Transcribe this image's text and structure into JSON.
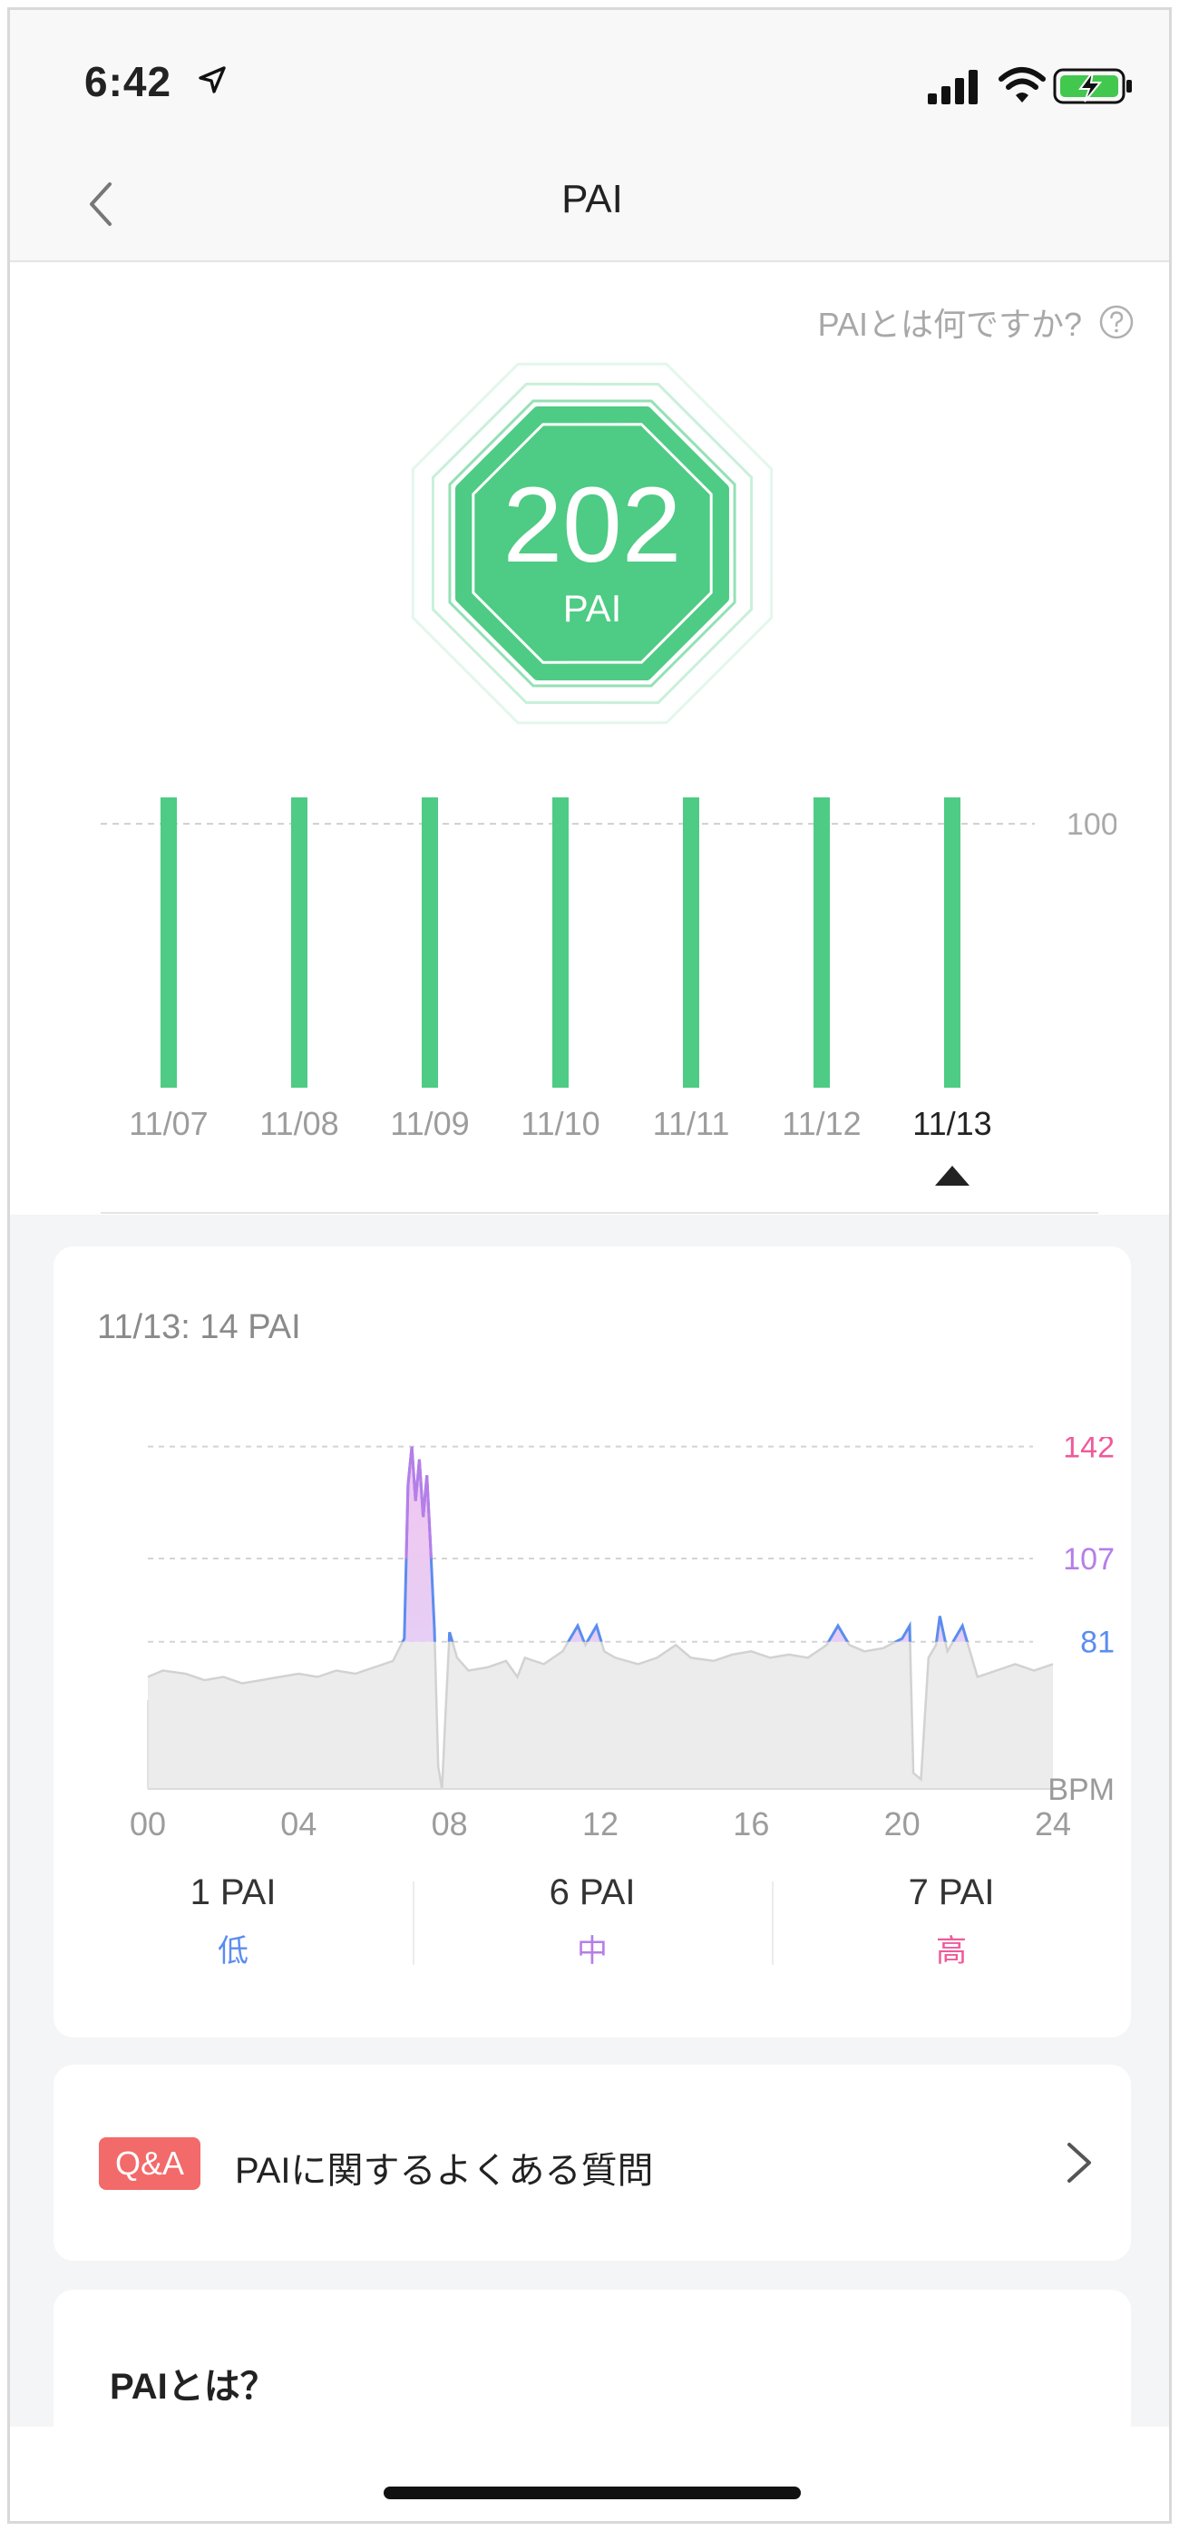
{
  "status_bar": {
    "time": "6:42"
  },
  "nav": {
    "title": "PAI"
  },
  "help": {
    "label": "PAIとは何ですか?"
  },
  "score": {
    "value": "202",
    "unit": "PAI"
  },
  "weekly_chart": {
    "reference_label": "100",
    "selected_index": 6
  },
  "detail": {
    "title": "11/13: 14 PAI"
  },
  "zones": [
    {
      "value": "1 PAI",
      "label": "低",
      "color": "#5b8def"
    },
    {
      "value": "6 PAI",
      "label": "中",
      "color": "#b67ee8"
    },
    {
      "value": "7 PAI",
      "label": "高",
      "color": "#ef5a9a"
    }
  ],
  "qa": {
    "badge": "Q&A",
    "label": "PAIに関するよくある質問"
  },
  "about": {
    "title": "PAIとは？"
  },
  "colors": {
    "green": "#4ecb84",
    "zone_low": "#5b8def",
    "zone_mid": "#b67ee8",
    "zone_high": "#ef5a9a",
    "qa_badge": "#f26a6a"
  },
  "chart_data": [
    {
      "type": "bar",
      "categories": [
        "11/07",
        "11/08",
        "11/09",
        "11/10",
        "11/11",
        "11/12",
        "11/13"
      ],
      "values": [
        110,
        110,
        110,
        110,
        110,
        110,
        110
      ],
      "reference_lines": [
        100
      ],
      "ylim": [
        0,
        110
      ],
      "grid": false
    },
    {
      "type": "area",
      "x_ticks": [
        "00",
        "04",
        "08",
        "12",
        "16",
        "20",
        "24"
      ],
      "y_ticks": [
        81,
        107,
        142
      ],
      "ylabel": "BPM",
      "ylim": [
        35,
        145
      ],
      "xlim": [
        0,
        24
      ],
      "series": [
        {
          "x": [
            0,
            0.4,
            1,
            1.5,
            2,
            2.5,
            3,
            3.5,
            4,
            4.5,
            5,
            5.5,
            6,
            6.5,
            6.8,
            6.9,
            7.0,
            7.1,
            7.2,
            7.3,
            7.4,
            7.5,
            7.6,
            7.7,
            7.8,
            7.9,
            8.0,
            8.2,
            8.5,
            9,
            9.5,
            9.8,
            10,
            10.5,
            11,
            11.4,
            11.6,
            11.9,
            12.1,
            12.4,
            13,
            13.5,
            14,
            14.4,
            15,
            15.5,
            16,
            16.5,
            17,
            17.5,
            18,
            18.3,
            18.6,
            19,
            19.5,
            20,
            20.2,
            20.3,
            20.5,
            20.7,
            20.9,
            21.0,
            21.2,
            21.4,
            21.6,
            21.8,
            22,
            22.5,
            23,
            23.5,
            24
          ],
          "y": [
            70,
            72,
            71,
            69,
            70,
            68,
            69,
            70,
            71,
            70,
            72,
            71,
            73,
            75,
            82,
            130,
            142,
            125,
            138,
            120,
            133,
            110,
            85,
            42,
            35,
            60,
            84,
            76,
            72,
            73,
            75,
            70,
            76,
            74,
            78,
            86,
            80,
            86,
            78,
            76,
            74,
            76,
            80,
            76,
            75,
            77,
            78,
            76,
            77,
            76,
            80,
            86,
            80,
            78,
            79,
            82,
            86,
            40,
            38,
            76,
            80,
            89,
            78,
            82,
            86,
            78,
            70,
            72,
            74,
            72,
            74
          ]
        }
      ]
    }
  ]
}
